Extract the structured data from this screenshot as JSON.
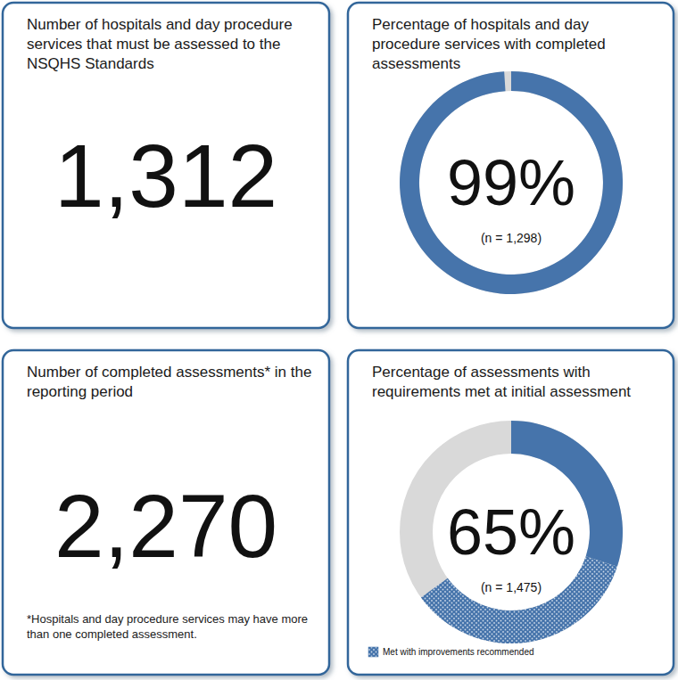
{
  "chart_data": [
    {
      "type": "number",
      "title": "Number of hospitals and day procedure services that must be assessed to the NSQHS Standards",
      "values": [
        1312
      ],
      "value_labels": [
        "1,312"
      ]
    },
    {
      "type": "donut",
      "title": "Percentage of hospitals and day procedure services with completed assessments",
      "values": [
        99
      ],
      "value_labels": [
        "99%"
      ],
      "color": "#4674ab",
      "ylim": [
        0,
        100
      ],
      "annotation": "(n = 1,298)"
    },
    {
      "type": "number",
      "title": "Number of completed assessments* in the reporting period",
      "values": [
        2270
      ],
      "value_labels": [
        "2,270"
      ],
      "annotation": "*Hospitals and day procedure services may have more than one completed assessment."
    },
    {
      "type": "donut",
      "title": "Percentage of assessments with requirements met at initial assessment",
      "values": [
        65
      ],
      "value_labels": [
        "65%"
      ],
      "ylim": [
        0,
        100
      ],
      "annotation": "(n = 1,475)",
      "series": [
        {
          "color": "#4674ab",
          "values": [
            30
          ]
        },
        {
          "name": "Met with improvements recommended",
          "color": "#4674ab",
          "values": [
            35
          ]
        }
      ]
    }
  ]
}
